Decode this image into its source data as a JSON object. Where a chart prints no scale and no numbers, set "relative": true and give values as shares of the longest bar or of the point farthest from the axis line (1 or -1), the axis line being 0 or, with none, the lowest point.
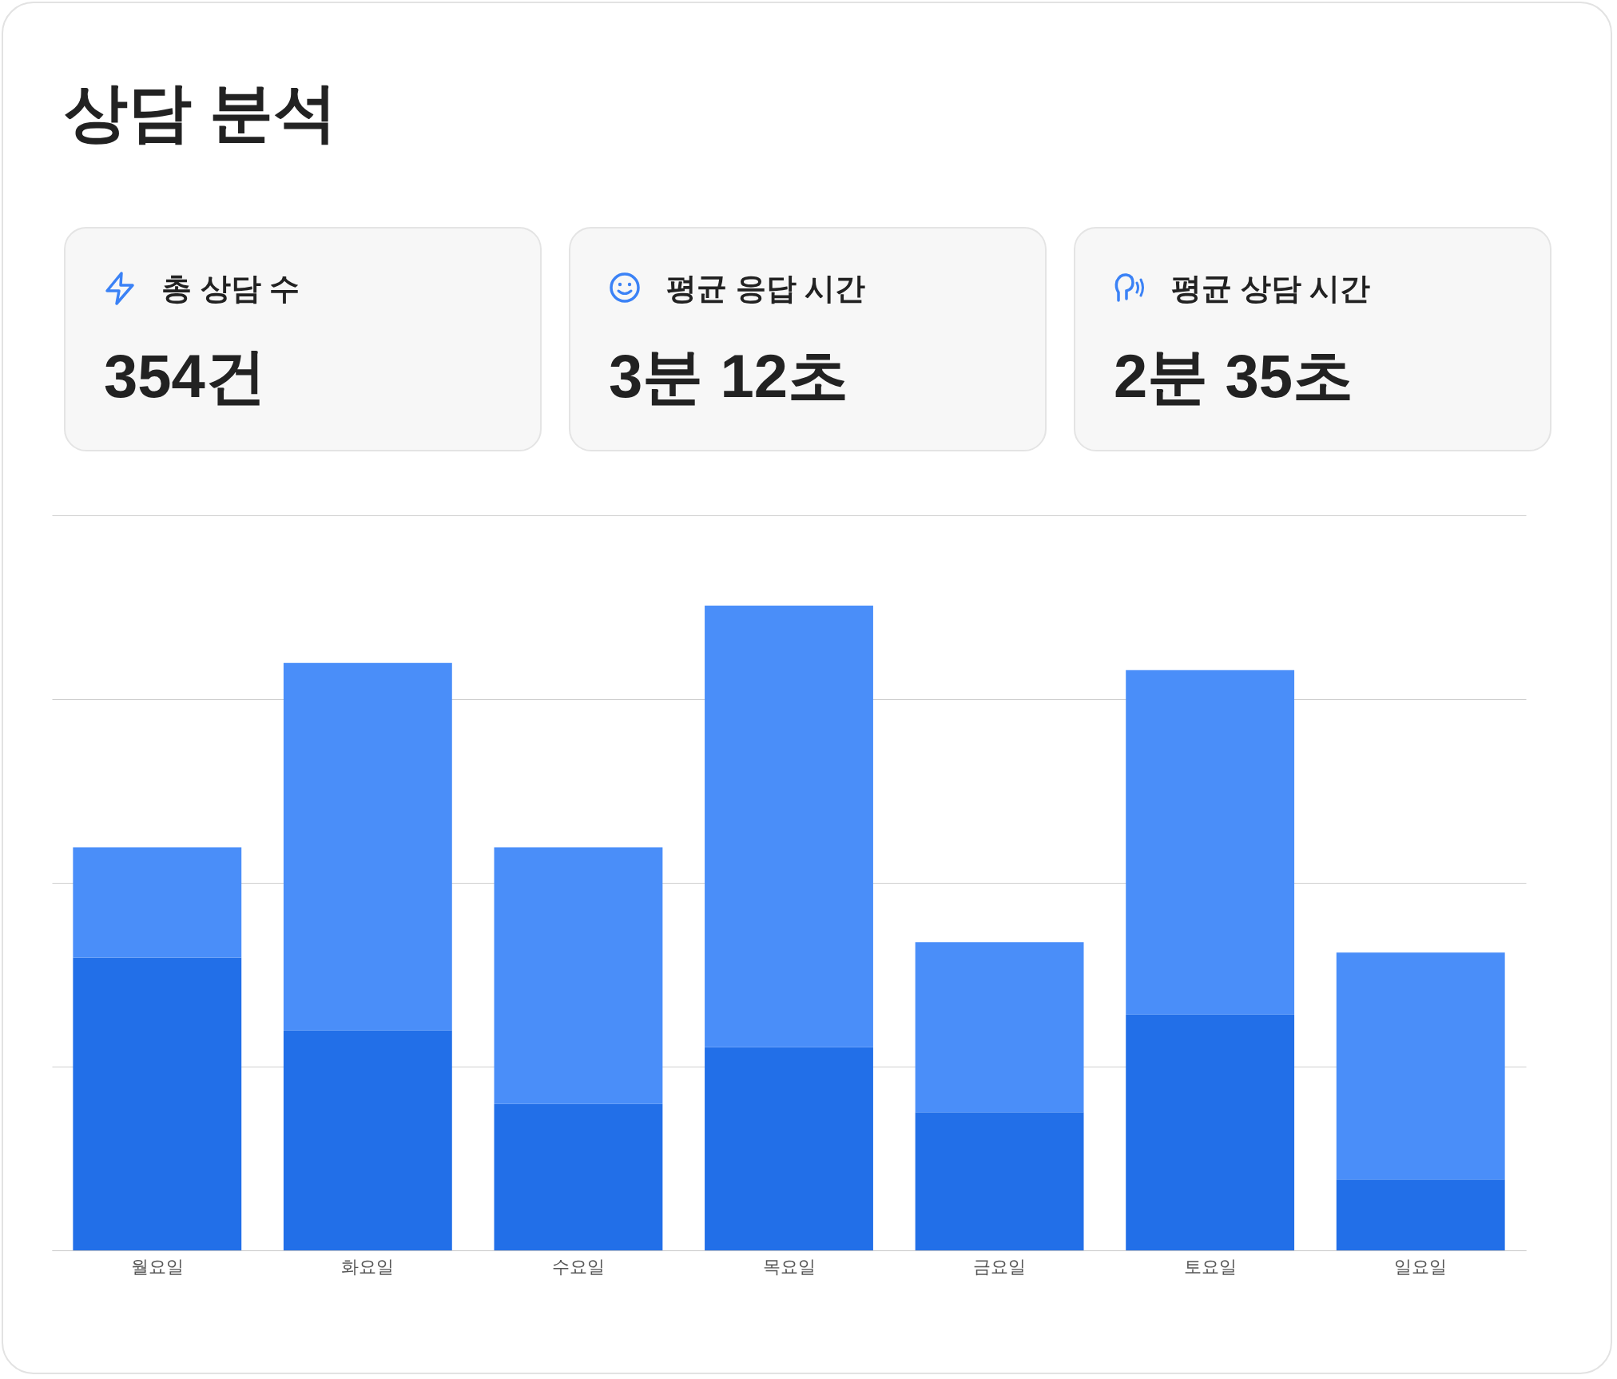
{
  "chart_data": [
    {
      "type": "other",
      "title": "상담 분석",
      "annotations": [
        "총 상담 수",
        "354건",
        "평균 응답 시간",
        "3분 12초",
        "평균 상담 시간",
        "2분 35초"
      ]
    },
    {
      "type": "bar",
      "stacked": true,
      "relative": true,
      "grid": "y",
      "categories": [
        "월요일",
        "화요일",
        "수요일",
        "목요일",
        "금요일",
        "토요일",
        "일요일"
      ],
      "series": [
        {
          "color": "#226fe8",
          "values": [
            0.454,
            0.341,
            0.227,
            0.315,
            0.214,
            0.366,
            0.11
          ]
        },
        {
          "color": "#4a8ef9",
          "values": [
            0.171,
            0.57,
            0.398,
            0.685,
            0.264,
            0.534,
            0.352
          ]
        }
      ]
    }
  ]
}
